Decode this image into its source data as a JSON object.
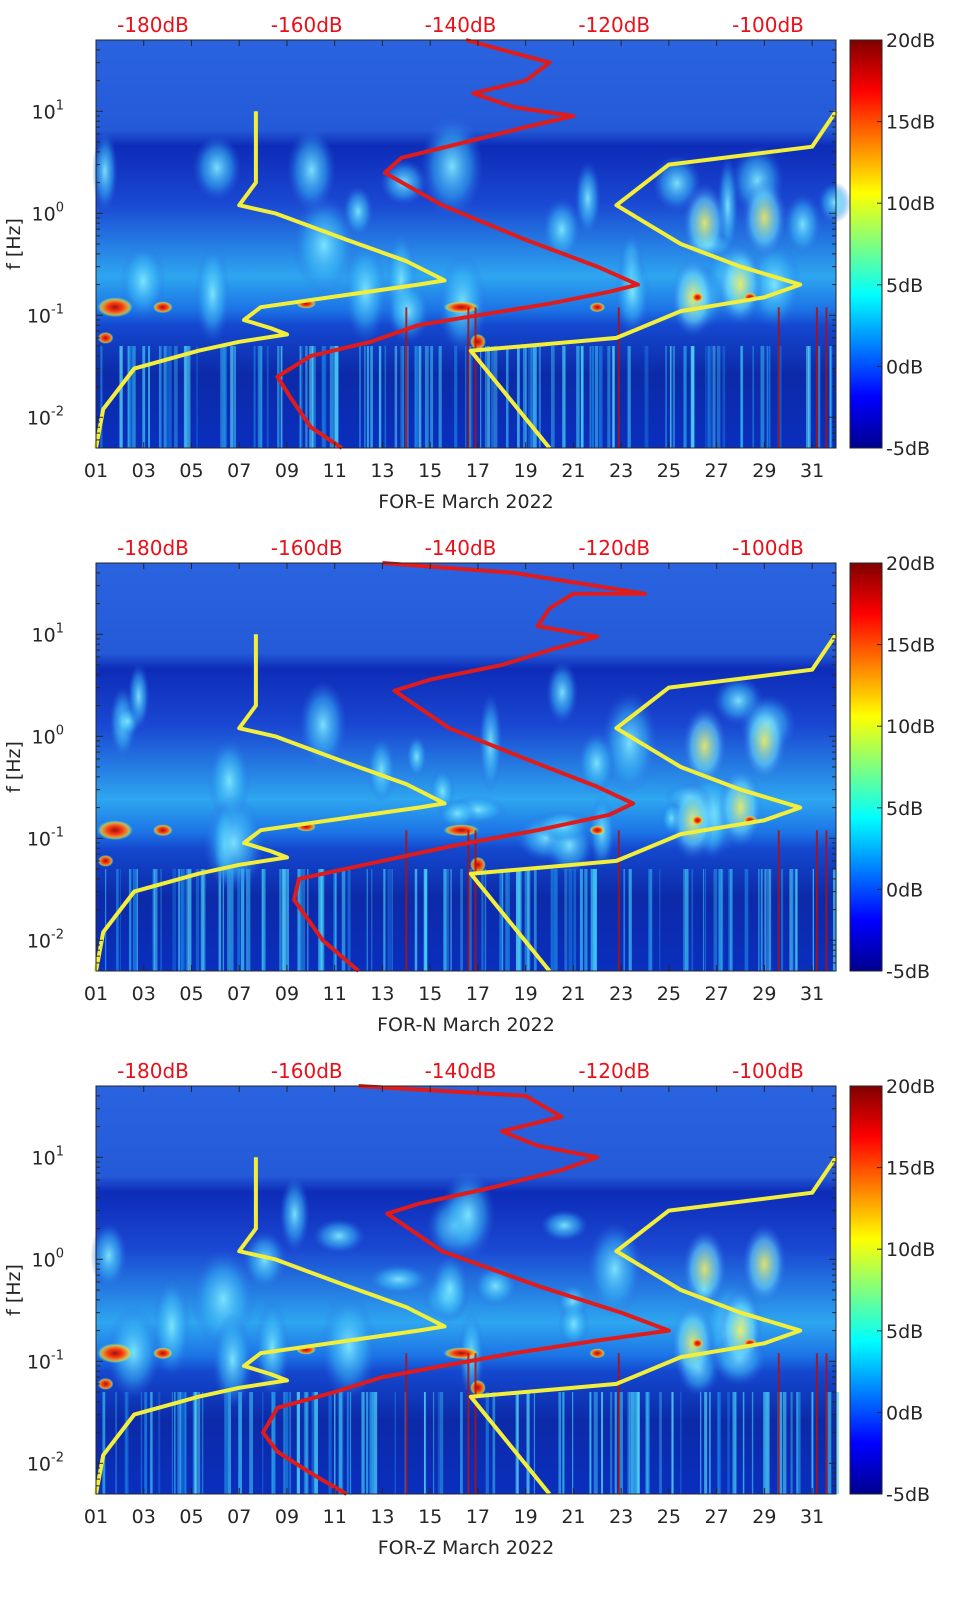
{
  "chart_data": [
    {
      "type": "heatmap",
      "title": "FOR-E March 2022",
      "xlabel": "FOR-E March 2022",
      "ylabel": "f [Hz]",
      "x_tick_labels": [
        "01",
        "03",
        "05",
        "07",
        "09",
        "11",
        "13",
        "15",
        "17",
        "19",
        "21",
        "23",
        "25",
        "27",
        "29",
        "31"
      ],
      "x_range_days": [
        1,
        32
      ],
      "y_scale": "log",
      "y_range_hz": [
        0.005,
        50
      ],
      "y_tick_labels": [
        "10^-2",
        "10^-1",
        "10^0",
        "10^1"
      ],
      "top_axis_labels": [
        "-180dB",
        "-160dB",
        "-140dB",
        "-120dB",
        "-100dB"
      ],
      "colorbar_labels": [
        "20dB",
        "15dB",
        "10dB",
        "5dB",
        "0dB",
        "-5dB"
      ],
      "colorbar_range_db": [
        -5,
        20
      ],
      "overlay_lines": [
        {
          "name": "noise model low",
          "color": "#f2ee3c",
          "points": [
            [
              1.0,
              0.005
            ],
            [
              1.3,
              0.012
            ],
            [
              2.6,
              0.03
            ],
            [
              5.3,
              0.045
            ],
            [
              7.0,
              0.055
            ],
            [
              9.0,
              0.065
            ],
            [
              8.3,
              0.075
            ],
            [
              7.2,
              0.09
            ],
            [
              7.9,
              0.12
            ],
            [
              14.5,
              0.2
            ],
            [
              15.6,
              0.22
            ],
            [
              14.0,
              0.34
            ],
            [
              11.5,
              0.55
            ],
            [
              8.5,
              1.0
            ],
            [
              7.0,
              1.2
            ],
            [
              7.7,
              2.0
            ],
            [
              7.7,
              10.0
            ]
          ]
        },
        {
          "name": "spectrum median",
          "color": "#e01b1b",
          "points": [
            [
              11.3,
              0.005
            ],
            [
              10.0,
              0.008
            ],
            [
              9.2,
              0.015
            ],
            [
              8.6,
              0.025
            ],
            [
              10.0,
              0.04
            ],
            [
              12.5,
              0.055
            ],
            [
              14.5,
              0.08
            ],
            [
              17.0,
              0.1
            ],
            [
              20.0,
              0.13
            ],
            [
              22.5,
              0.17
            ],
            [
              23.7,
              0.2
            ],
            [
              22.0,
              0.3
            ],
            [
              19.0,
              0.55
            ],
            [
              15.5,
              1.2
            ],
            [
              13.1,
              2.5
            ],
            [
              13.8,
              3.5
            ],
            [
              16.5,
              5.0
            ],
            [
              19.0,
              7.0
            ],
            [
              21.0,
              9.0
            ],
            [
              18.5,
              11.0
            ],
            [
              16.8,
              15.0
            ],
            [
              19.0,
              20.0
            ],
            [
              20.0,
              30.0
            ],
            [
              16.5,
              50.0
            ]
          ]
        },
        {
          "name": "noise model high",
          "color": "#f2ee3c",
          "points": [
            [
              20.0,
              0.005
            ],
            [
              16.7,
              0.045
            ],
            [
              21.0,
              0.055
            ],
            [
              22.8,
              0.06
            ],
            [
              25.5,
              0.11
            ],
            [
              29.0,
              0.15
            ],
            [
              30.5,
              0.2
            ],
            [
              28.0,
              0.3
            ],
            [
              25.5,
              0.5
            ],
            [
              22.8,
              1.2
            ],
            [
              25.0,
              3.0
            ],
            [
              31.0,
              4.5
            ],
            [
              32.0,
              10.0
            ]
          ]
        }
      ]
    },
    {
      "type": "heatmap",
      "title": "FOR-N March 2022",
      "xlabel": "FOR-N March 2022",
      "ylabel": "f [Hz]",
      "x_tick_labels": [
        "01",
        "03",
        "05",
        "07",
        "09",
        "11",
        "13",
        "15",
        "17",
        "19",
        "21",
        "23",
        "25",
        "27",
        "29",
        "31"
      ],
      "x_range_days": [
        1,
        32
      ],
      "y_scale": "log",
      "y_range_hz": [
        0.005,
        50
      ],
      "y_tick_labels": [
        "10^-2",
        "10^-1",
        "10^0",
        "10^1"
      ],
      "top_axis_labels": [
        "-180dB",
        "-160dB",
        "-140dB",
        "-120dB",
        "-100dB"
      ],
      "colorbar_labels": [
        "20dB",
        "15dB",
        "10dB",
        "5dB",
        "0dB",
        "-5dB"
      ],
      "colorbar_range_db": [
        -5,
        20
      ],
      "overlay_lines": [
        {
          "name": "noise model low",
          "color": "#f2ee3c",
          "points": [
            [
              1.0,
              0.005
            ],
            [
              1.3,
              0.012
            ],
            [
              2.6,
              0.03
            ],
            [
              5.3,
              0.045
            ],
            [
              7.0,
              0.055
            ],
            [
              9.0,
              0.065
            ],
            [
              8.3,
              0.075
            ],
            [
              7.2,
              0.09
            ],
            [
              7.9,
              0.12
            ],
            [
              14.5,
              0.2
            ],
            [
              15.6,
              0.22
            ],
            [
              14.0,
              0.34
            ],
            [
              11.5,
              0.55
            ],
            [
              8.5,
              1.0
            ],
            [
              7.0,
              1.2
            ],
            [
              7.7,
              2.0
            ],
            [
              7.7,
              10.0
            ]
          ]
        },
        {
          "name": "spectrum median",
          "color": "#e01b1b",
          "points": [
            [
              12.0,
              0.005
            ],
            [
              10.5,
              0.01
            ],
            [
              9.3,
              0.025
            ],
            [
              9.5,
              0.04
            ],
            [
              13.0,
              0.06
            ],
            [
              16.0,
              0.085
            ],
            [
              19.5,
              0.12
            ],
            [
              22.5,
              0.17
            ],
            [
              23.5,
              0.22
            ],
            [
              22.0,
              0.32
            ],
            [
              19.0,
              0.6
            ],
            [
              15.8,
              1.2
            ],
            [
              13.5,
              2.8
            ],
            [
              15.0,
              3.6
            ],
            [
              18.0,
              5.0
            ],
            [
              20.0,
              7.0
            ],
            [
              22.0,
              9.5
            ],
            [
              19.5,
              12.0
            ],
            [
              20.0,
              18.0
            ],
            [
              21.0,
              25.0
            ],
            [
              24.0,
              25.0
            ],
            [
              18.5,
              40.0
            ],
            [
              13.0,
              50.0
            ]
          ]
        },
        {
          "name": "noise model high",
          "color": "#f2ee3c",
          "points": [
            [
              20.0,
              0.005
            ],
            [
              16.7,
              0.045
            ],
            [
              21.0,
              0.055
            ],
            [
              22.8,
              0.06
            ],
            [
              25.5,
              0.11
            ],
            [
              29.0,
              0.15
            ],
            [
              30.5,
              0.2
            ],
            [
              28.0,
              0.3
            ],
            [
              25.5,
              0.5
            ],
            [
              22.8,
              1.2
            ],
            [
              25.0,
              3.0
            ],
            [
              31.0,
              4.5
            ],
            [
              32.0,
              10.0
            ]
          ]
        }
      ]
    },
    {
      "type": "heatmap",
      "title": "FOR-Z March 2022",
      "xlabel": "FOR-Z March 2022",
      "ylabel": "f [Hz]",
      "x_tick_labels": [
        "01",
        "03",
        "05",
        "07",
        "09",
        "11",
        "13",
        "15",
        "17",
        "19",
        "21",
        "23",
        "25",
        "27",
        "29",
        "31"
      ],
      "x_range_days": [
        1,
        32
      ],
      "y_scale": "log",
      "y_range_hz": [
        0.005,
        50
      ],
      "y_tick_labels": [
        "10^-2",
        "10^-1",
        "10^0",
        "10^1"
      ],
      "top_axis_labels": [
        "-180dB",
        "-160dB",
        "-140dB",
        "-120dB",
        "-100dB"
      ],
      "colorbar_labels": [
        "20dB",
        "15dB",
        "10dB",
        "5dB",
        "0dB",
        "-5dB"
      ],
      "colorbar_range_db": [
        -5,
        20
      ],
      "overlay_lines": [
        {
          "name": "noise model low",
          "color": "#f2ee3c",
          "points": [
            [
              1.0,
              0.005
            ],
            [
              1.3,
              0.012
            ],
            [
              2.6,
              0.03
            ],
            [
              5.3,
              0.045
            ],
            [
              7.0,
              0.055
            ],
            [
              9.0,
              0.065
            ],
            [
              8.3,
              0.075
            ],
            [
              7.2,
              0.09
            ],
            [
              7.9,
              0.12
            ],
            [
              14.5,
              0.2
            ],
            [
              15.6,
              0.22
            ],
            [
              14.0,
              0.34
            ],
            [
              11.5,
              0.55
            ],
            [
              8.5,
              1.0
            ],
            [
              7.0,
              1.2
            ],
            [
              7.7,
              2.0
            ],
            [
              7.7,
              10.0
            ]
          ]
        },
        {
          "name": "spectrum median",
          "color": "#e01b1b",
          "points": [
            [
              11.5,
              0.005
            ],
            [
              10.0,
              0.008
            ],
            [
              8.6,
              0.013
            ],
            [
              8.0,
              0.02
            ],
            [
              8.6,
              0.035
            ],
            [
              11.0,
              0.05
            ],
            [
              13.0,
              0.07
            ],
            [
              15.5,
              0.09
            ],
            [
              18.5,
              0.12
            ],
            [
              22.0,
              0.16
            ],
            [
              25.0,
              0.2
            ],
            [
              23.0,
              0.3
            ],
            [
              19.5,
              0.55
            ],
            [
              15.5,
              1.2
            ],
            [
              13.2,
              2.8
            ],
            [
              14.5,
              3.5
            ],
            [
              17.5,
              5.0
            ],
            [
              20.5,
              7.5
            ],
            [
              22.0,
              10.0
            ],
            [
              19.5,
              13.0
            ],
            [
              18.0,
              18.0
            ],
            [
              20.5,
              25.0
            ],
            [
              19.0,
              40.0
            ],
            [
              12.0,
              50.0
            ]
          ]
        },
        {
          "name": "noise model high",
          "color": "#f2ee3c",
          "points": [
            [
              20.0,
              0.005
            ],
            [
              16.7,
              0.045
            ],
            [
              21.0,
              0.055
            ],
            [
              22.8,
              0.06
            ],
            [
              25.5,
              0.11
            ],
            [
              29.0,
              0.15
            ],
            [
              30.5,
              0.2
            ],
            [
              28.0,
              0.3
            ],
            [
              25.5,
              0.5
            ],
            [
              22.8,
              1.2
            ],
            [
              25.0,
              3.0
            ],
            [
              31.0,
              4.5
            ],
            [
              32.0,
              10.0
            ]
          ]
        }
      ]
    }
  ]
}
